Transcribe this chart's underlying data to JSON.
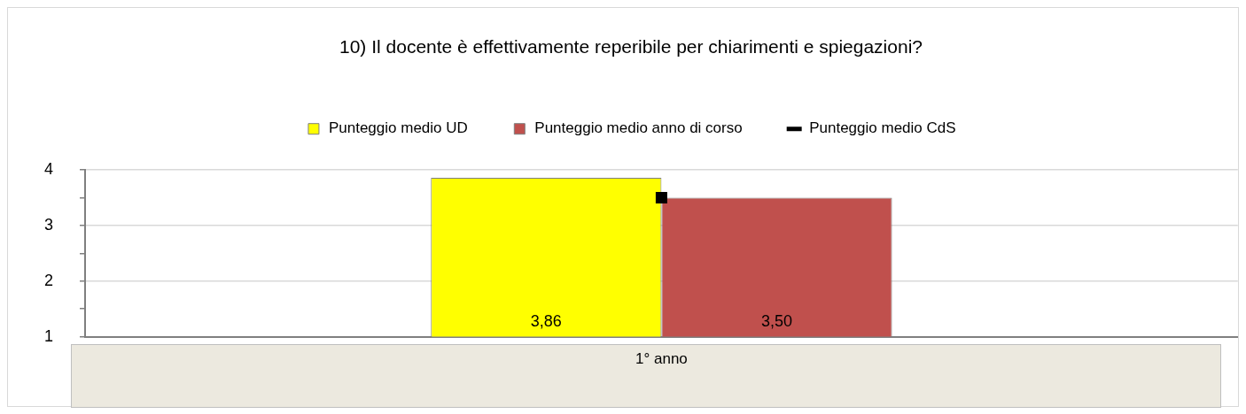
{
  "chart_data": {
    "type": "bar",
    "title": "10) Il docente è effettivamente reperibile per chiarimenti e spiegazioni?",
    "categories": [
      "1° anno"
    ],
    "series": [
      {
        "name": "Punteggio medio UD",
        "color": "#ffff00",
        "values": [
          3.86
        ],
        "value_labels": [
          "3,86"
        ]
      },
      {
        "name": "Punteggio medio anno di corso",
        "color": "#c0504d",
        "values": [
          3.5
        ],
        "value_labels": [
          "3,50"
        ]
      },
      {
        "name": "Punteggio medio CdS",
        "type": "line",
        "marker": "square",
        "color": "#000000",
        "values": [
          3.5
        ]
      }
    ],
    "ylim": [
      1,
      4
    ],
    "yticks": [
      1,
      {
        "value": 1.5,
        "label": null
      },
      2,
      {
        "value": 2.5,
        "label": null
      },
      3,
      {
        "value": 3.5,
        "label": null
      },
      4
    ],
    "grid": "y",
    "legend": "top"
  }
}
